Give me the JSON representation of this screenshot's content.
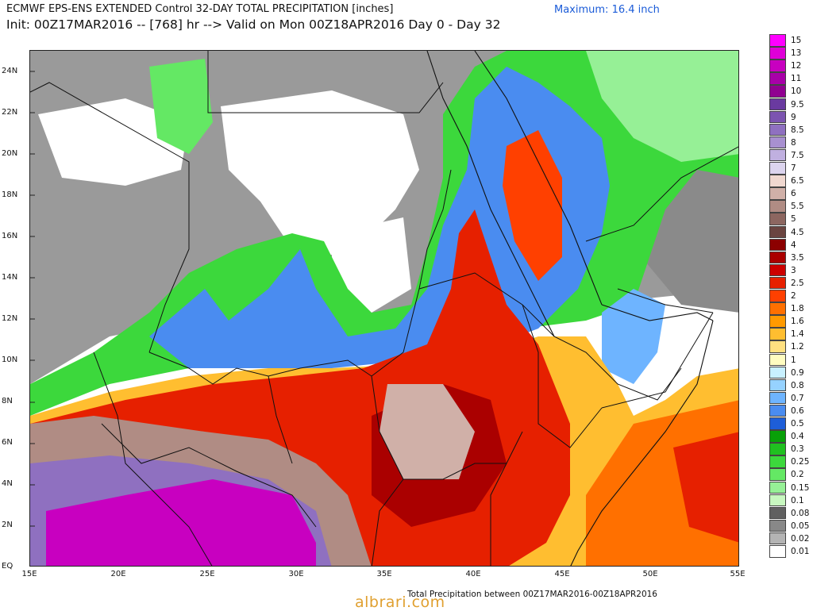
{
  "header": {
    "line1": "ECMWF EPS-ENS EXTENDED Control 32-DAY TOTAL PRECIPITATION [inches]",
    "line2": "Init: 00Z17MAR2016 -- [768] hr --> Valid on Mon 00Z18APR2016  Day 0 - Day 32",
    "maximum": "Maximum: 16.4 inch"
  },
  "map": {
    "lat_labels": [
      "24N",
      "22N",
      "20N",
      "18N",
      "16N",
      "14N",
      "12N",
      "10N",
      "8N",
      "6N",
      "4N",
      "2N",
      "EQ"
    ],
    "lon_labels": [
      "15E",
      "20E",
      "25E",
      "30E",
      "35E",
      "40E",
      "45E",
      "50E",
      "55E"
    ],
    "lat_range": [
      0,
      25
    ],
    "lon_range": [
      15,
      55
    ]
  },
  "legend": {
    "items": [
      {
        "label": "15",
        "color": "#ff00ff"
      },
      {
        "label": "13",
        "color": "#e000d8"
      },
      {
        "label": "12",
        "color": "#c800c0"
      },
      {
        "label": "11",
        "color": "#a800a8"
      },
      {
        "label": "10",
        "color": "#900090"
      },
      {
        "label": "9.5",
        "color": "#6a3aa0"
      },
      {
        "label": "9",
        "color": "#7c54b0"
      },
      {
        "label": "8.5",
        "color": "#8f70c0"
      },
      {
        "label": "8",
        "color": "#a890d0"
      },
      {
        "label": "7.5",
        "color": "#c0b0e0"
      },
      {
        "label": "7",
        "color": "#dcd4ee"
      },
      {
        "label": "6.5",
        "color": "#f0d8d0"
      },
      {
        "label": "6",
        "color": "#d0b0a8"
      },
      {
        "label": "5.5",
        "color": "#b08c84"
      },
      {
        "label": "5",
        "color": "#8c6660"
      },
      {
        "label": "4.5",
        "color": "#6a4440"
      },
      {
        "label": "4",
        "color": "#8c0000"
      },
      {
        "label": "3.5",
        "color": "#aa0000"
      },
      {
        "label": "3",
        "color": "#cc0000"
      },
      {
        "label": "2.5",
        "color": "#e62000"
      },
      {
        "label": "2",
        "color": "#ff4000"
      },
      {
        "label": "1.8",
        "color": "#ff7000"
      },
      {
        "label": "1.6",
        "color": "#ff9a00"
      },
      {
        "label": "1.4",
        "color": "#ffbe30"
      },
      {
        "label": "1.2",
        "color": "#ffe080"
      },
      {
        "label": "1",
        "color": "#fffcc0"
      },
      {
        "label": "0.9",
        "color": "#c8f0ff"
      },
      {
        "label": "0.8",
        "color": "#96d2ff"
      },
      {
        "label": "0.7",
        "color": "#6eb4ff"
      },
      {
        "label": "0.6",
        "color": "#4a8cf0"
      },
      {
        "label": "0.5",
        "color": "#1e5ed8"
      },
      {
        "label": "0.4",
        "color": "#08a008"
      },
      {
        "label": "0.3",
        "color": "#20c020"
      },
      {
        "label": "0.25",
        "color": "#3cd83c"
      },
      {
        "label": "0.2",
        "color": "#64e864"
      },
      {
        "label": "0.15",
        "color": "#96f096"
      },
      {
        "label": "0.1",
        "color": "#c8f8c0"
      },
      {
        "label": "0.08",
        "color": "#606060"
      },
      {
        "label": "0.05",
        "color": "#888888"
      },
      {
        "label": "0.02",
        "color": "#b4b4b4"
      },
      {
        "label": "0.01",
        "color": "#ffffff"
      }
    ]
  },
  "footer": {
    "text": "Total Precipitation between 00Z17MAR2016-00Z18APR2016",
    "watermark": "albrari.com"
  }
}
